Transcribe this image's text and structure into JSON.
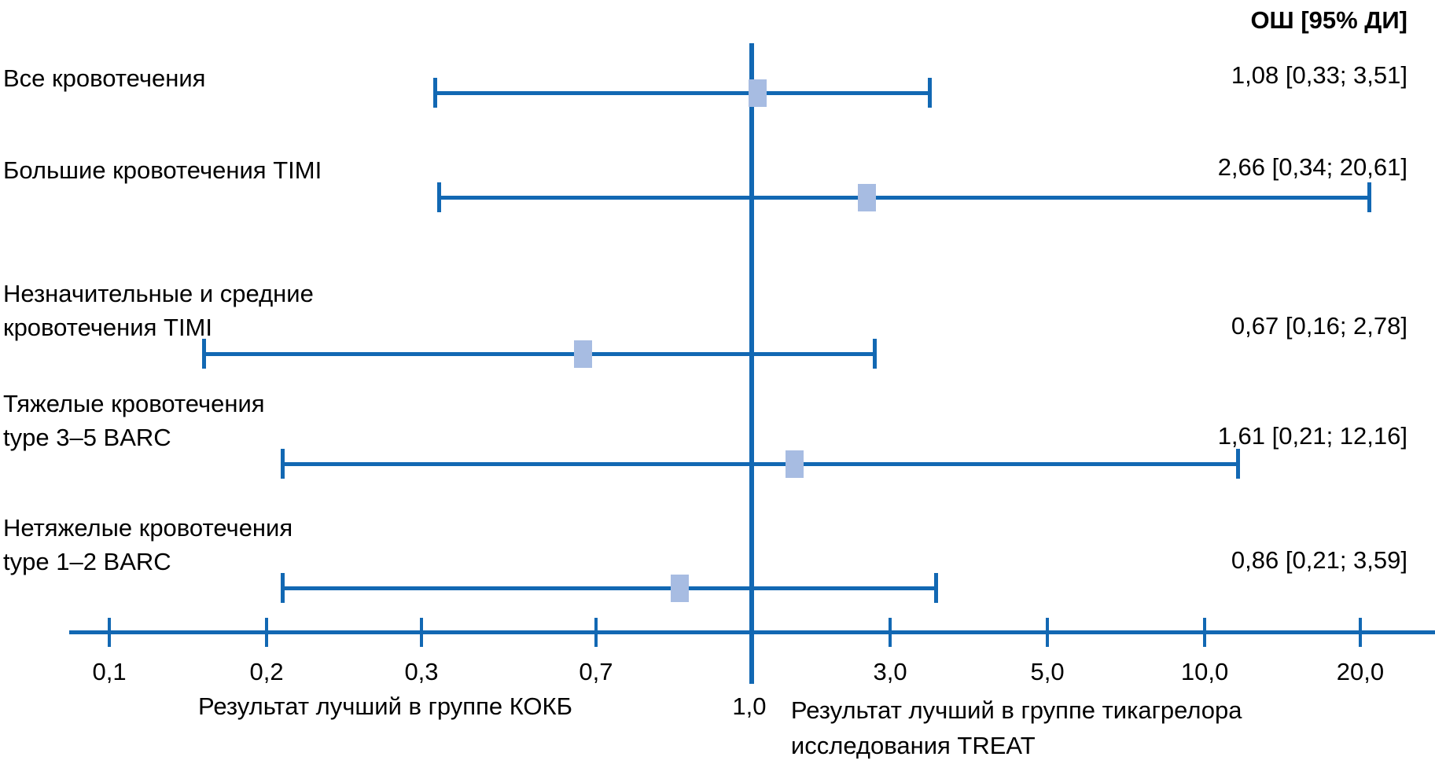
{
  "header": {
    "or_column_label": "ОШ [95% ДИ]"
  },
  "chart_data": {
    "type": "forest",
    "title": "",
    "xlabel_left": "Результат лучший в группе КОКБ",
    "xlabel_right_lines": [
      "Результат лучший в группе тикагрелора",
      "исследования TREAT"
    ],
    "x_ticks": [
      0.1,
      0.2,
      0.3,
      0.7,
      1.0,
      3.0,
      5.0,
      10.0,
      20.0
    ],
    "x_tick_labels": [
      "0,1",
      "0,2",
      "0,3",
      "0,7",
      "1,0",
      "3,0",
      "5,0",
      "10,0",
      "20,0"
    ],
    "x_tick_percent": [
      7.62,
      18.58,
      29.37,
      41.53,
      52.38,
      62.03,
      72.99,
      83.95,
      94.79
    ],
    "reference_value": 1.0,
    "reference_label": "1,0",
    "rows": [
      {
        "label_lines": [
          "Все кровотечения"
        ],
        "or": 1.08,
        "ci_low": 0.33,
        "ci_high": 3.51,
        "or_text": "1,08 [0,33; 3,51]"
      },
      {
        "label_lines": [
          "Большие кровотечения TIMI"
        ],
        "or": 2.66,
        "ci_low": 0.34,
        "ci_high": 20.61,
        "or_text": "2,66 [0,34; 20,61]"
      },
      {
        "label_lines": [
          "Незначительные и средние",
          "кровотечения TIMI"
        ],
        "or": 0.67,
        "ci_low": 0.16,
        "ci_high": 2.78,
        "or_text": "0,67 [0,16; 2,78]"
      },
      {
        "label_lines": [
          "Тяжелые кровотечения",
          "type 3–5 BARC"
        ],
        "or": 1.61,
        "ci_low": 0.21,
        "ci_high": 12.16,
        "or_text": "1,61 [0,21; 12,16]"
      },
      {
        "label_lines": [
          "Нетяжелые кровотечения",
          "type 1–2 BARC"
        ],
        "or": 0.86,
        "ci_low": 0.21,
        "ci_high": 3.59,
        "or_text": "0,86 [0,21; 3,59]"
      }
    ],
    "colors": {
      "line": "#1268B3",
      "marker": "#A7BCE2",
      "text": "#000000"
    }
  }
}
